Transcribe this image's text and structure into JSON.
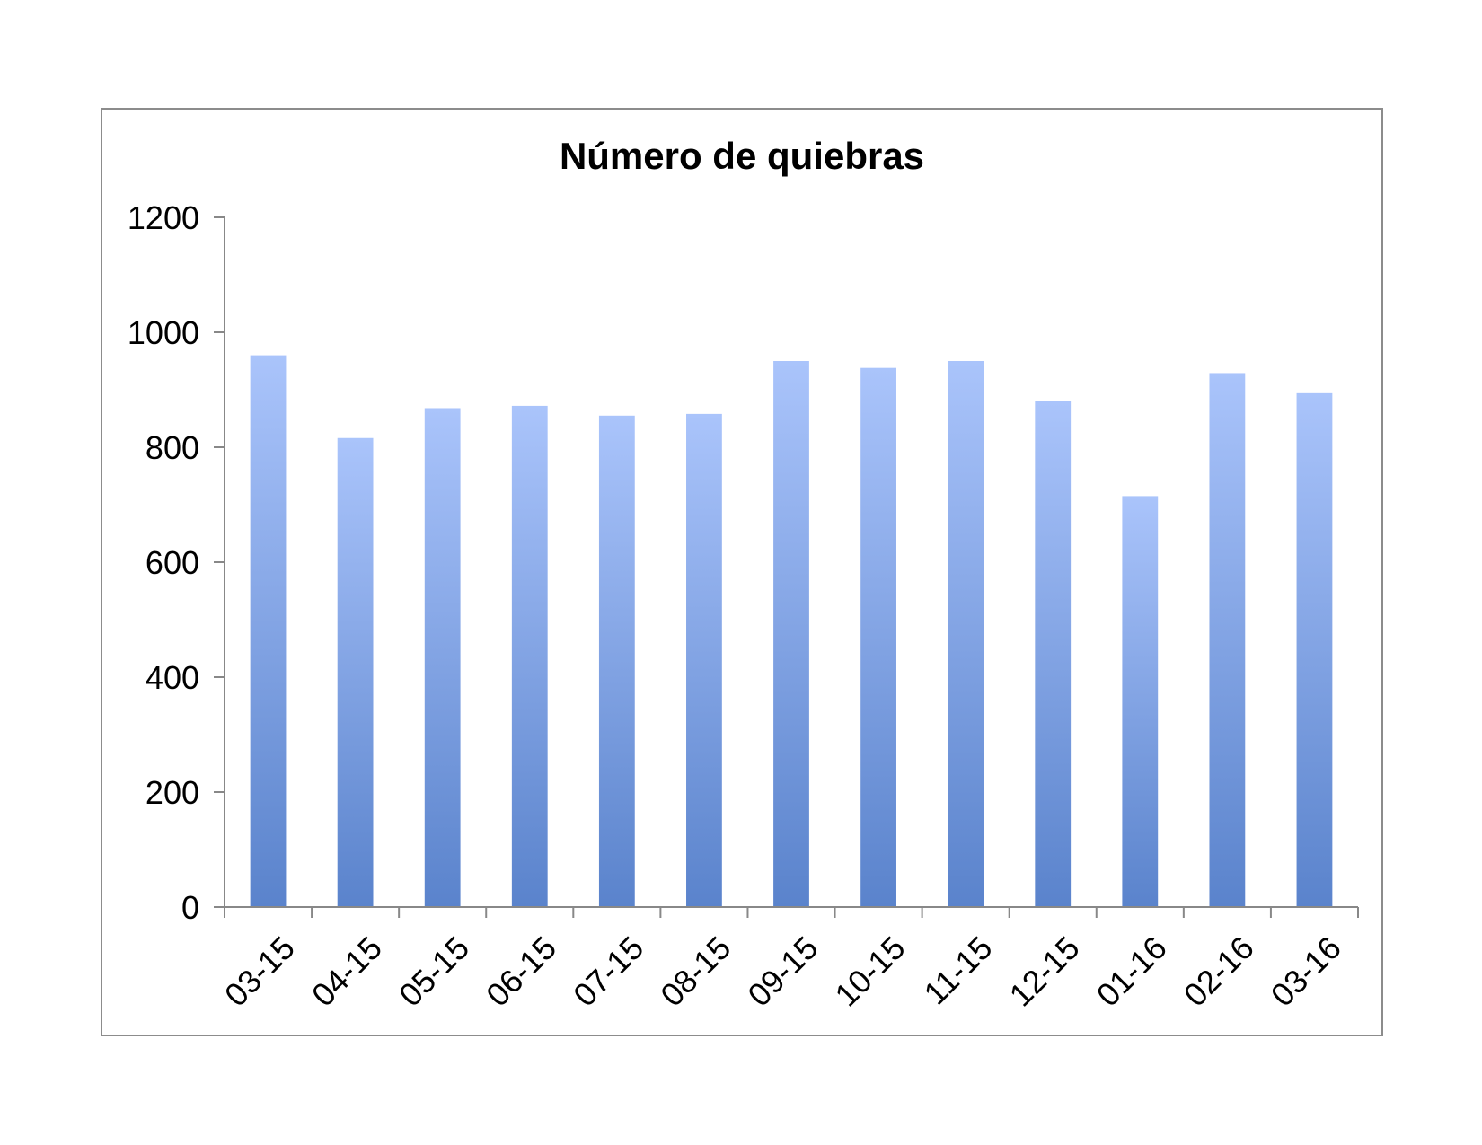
{
  "chart_data": {
    "type": "bar",
    "title": "Número de quiebras",
    "xlabel": "",
    "ylabel": "",
    "categories": [
      "03-15",
      "04-15",
      "05-15",
      "06-15",
      "07-15",
      "08-15",
      "09-15",
      "10-15",
      "11-15",
      "12-15",
      "01-16",
      "02-16",
      "03-16"
    ],
    "values": [
      960,
      816,
      868,
      872,
      855,
      858,
      950,
      938,
      950,
      880,
      715,
      929,
      894
    ],
    "ylim": [
      0,
      1200
    ],
    "yticks": [
      0,
      200,
      400,
      600,
      800,
      1000,
      1200
    ],
    "grid": false,
    "legend": "none",
    "colors": {
      "bar_top": "#aac4fb",
      "bar_bottom": "#5a83cc",
      "axis": "#888888",
      "frame": "#8c8c8c"
    }
  }
}
